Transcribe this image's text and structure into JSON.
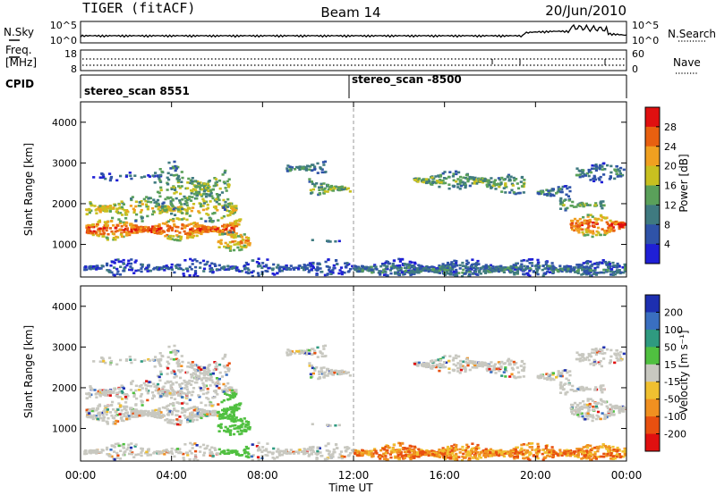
{
  "header": {
    "radar": "TIGER (fitACF)",
    "beam": "Beam 14",
    "date": "20/Jun/2010"
  },
  "nsky_panel": {
    "left_label": "N.Sky",
    "right_label": "N.Search",
    "left_ticks": [
      "10^5",
      "10^0"
    ],
    "right_ticks": [
      "10^5",
      "10^0"
    ]
  },
  "freq_panel": {
    "left_label_1": "Freq.",
    "left_label_2": "[MHz]",
    "right_label": "Nave",
    "left_ticks": [
      "18",
      "8"
    ],
    "right_ticks": [
      "60",
      "0"
    ]
  },
  "cpid_panel": {
    "label": "CPID",
    "programs": [
      "stereo_scan 8551",
      "stereo_scan -8500"
    ]
  },
  "x_axis": {
    "label": "Time UT",
    "ticks": [
      "00:00",
      "04:00",
      "08:00",
      "12:00",
      "16:00",
      "20:00",
      "00:00"
    ]
  },
  "chart_data": [
    {
      "type": "heatmap",
      "title": "",
      "xlabel": "Time UT",
      "ylabel": "Slant Range [km]",
      "xlim": [
        0,
        24
      ],
      "ylim": [
        200,
        4500
      ],
      "y_ticks": [
        "1000",
        "2000",
        "3000",
        "4000"
      ],
      "colorbar": {
        "label": "Power [dB]",
        "ticks": [
          "4",
          "8",
          "12",
          "16",
          "20",
          "24",
          "28"
        ],
        "range": [
          0,
          30
        ],
        "colors": [
          "#1f1fd6",
          "#2f53a8",
          "#3f7a80",
          "#5aa05a",
          "#c8c020",
          "#f0a020",
          "#e86010",
          "#e01010"
        ]
      }
    },
    {
      "type": "heatmap",
      "title": "",
      "xlabel": "Time UT",
      "ylabel": "Slant Range [km]",
      "xlim": [
        0,
        24
      ],
      "ylim": [
        200,
        4500
      ],
      "y_ticks": [
        "1000",
        "2000",
        "3000",
        "4000"
      ],
      "colorbar": {
        "label": "Velocity [m s⁻¹]",
        "ticks": [
          "200",
          "100",
          "50",
          "15",
          "-15",
          "-50",
          "-100",
          "-200"
        ],
        "range": [
          -250,
          250
        ],
        "colors": [
          "#1d2fb0",
          "#3a6fc0",
          "#2f9a80",
          "#50c040",
          "#c8c8c0",
          "#f0c030",
          "#f09020",
          "#e85010",
          "#e01010"
        ]
      }
    }
  ]
}
